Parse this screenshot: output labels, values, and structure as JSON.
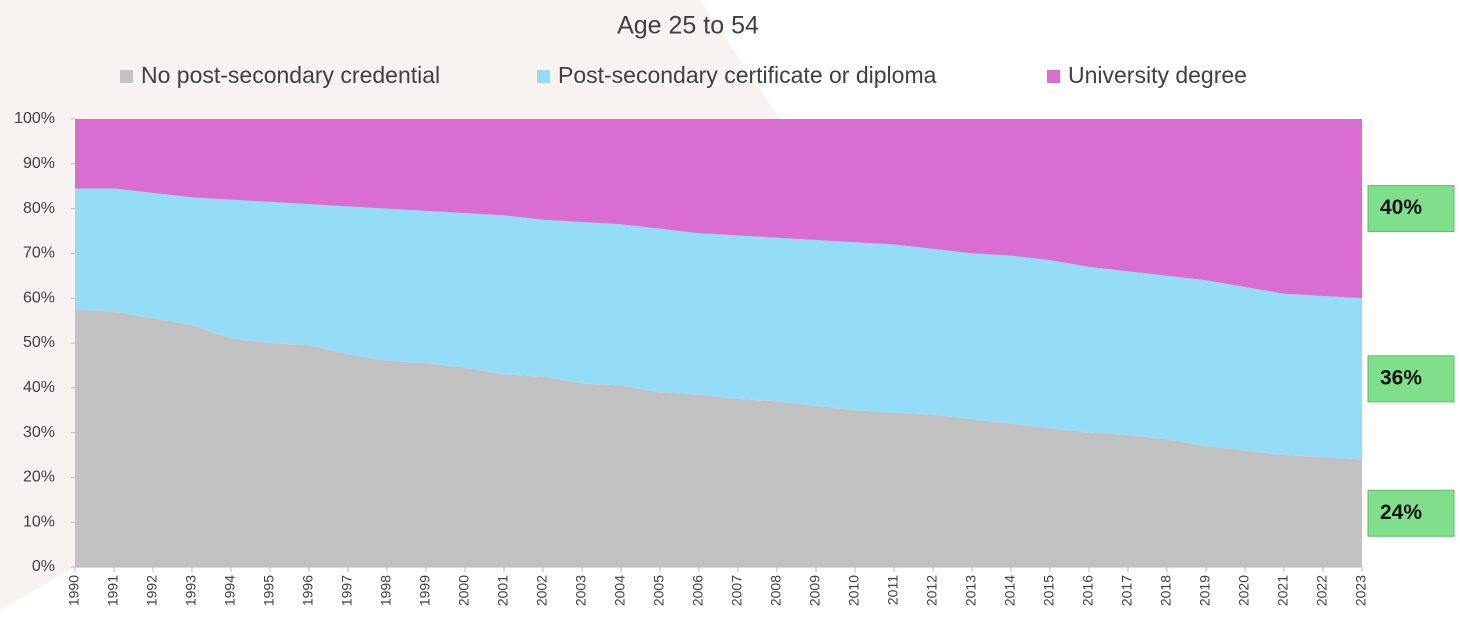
{
  "chart_data": {
    "type": "stacked_area_100",
    "title": "Age 25 to 54",
    "x": [
      1990,
      1991,
      1992,
      1993,
      1994,
      1995,
      1996,
      1997,
      1998,
      1999,
      2000,
      2001,
      2002,
      2003,
      2004,
      2005,
      2006,
      2007,
      2008,
      2009,
      2010,
      2011,
      2012,
      2013,
      2014,
      2015,
      2016,
      2017,
      2018,
      2019,
      2020,
      2021,
      2022,
      2023
    ],
    "xlim": [
      1990,
      2023
    ],
    "xticks": [
      1990,
      1991,
      1992,
      1993,
      1994,
      1995,
      1996,
      1997,
      1998,
      1999,
      2000,
      2001,
      2002,
      2003,
      2004,
      2005,
      2006,
      2007,
      2008,
      2009,
      2010,
      2011,
      2012,
      2013,
      2014,
      2015,
      2016,
      2017,
      2018,
      2019,
      2020,
      2021,
      2022,
      2023
    ],
    "ylim": [
      0,
      100
    ],
    "yticks": [
      {
        "value": 0,
        "label": "0%"
      },
      {
        "value": 10,
        "label": "10%"
      },
      {
        "value": 20,
        "label": "20%"
      },
      {
        "value": 30,
        "label": "30%"
      },
      {
        "value": 40,
        "label": "40%"
      },
      {
        "value": 50,
        "label": "50%"
      },
      {
        "value": 60,
        "label": "60%"
      },
      {
        "value": 70,
        "label": "70%"
      },
      {
        "value": 80,
        "label": "80%"
      },
      {
        "value": 90,
        "label": "90%"
      },
      {
        "value": 100,
        "label": "100%"
      }
    ],
    "legend": "top",
    "series": [
      {
        "name": "No post-secondary credential",
        "color": "#c2c2c2",
        "values": [
          57.5,
          57,
          55.5,
          54,
          51,
          50,
          49.5,
          47.5,
          46,
          45.5,
          44.5,
          43,
          42.5,
          41,
          40.5,
          39,
          38.5,
          37.5,
          37,
          36,
          35,
          34.5,
          34,
          33,
          32,
          31,
          30,
          29.5,
          28.5,
          27,
          26,
          25,
          24.5,
          24
        ],
        "value_labels": [
          null,
          null,
          null,
          null,
          null,
          null,
          null,
          null,
          null,
          null,
          null,
          null,
          null,
          null,
          null,
          null,
          null,
          null,
          null,
          null,
          null,
          null,
          null,
          null,
          null,
          null,
          null,
          null,
          null,
          null,
          null,
          null,
          null,
          "24%"
        ]
      },
      {
        "name": "Post-secondary certificate or diploma",
        "color": "#94dcf7",
        "values": [
          27,
          27.5,
          28,
          28.5,
          31,
          31.5,
          31.5,
          33,
          34,
          34,
          34.5,
          35.5,
          35,
          36,
          36,
          36.5,
          36,
          36.5,
          36.5,
          37,
          37.5,
          37.5,
          37,
          37,
          37.5,
          37.5,
          37,
          36.5,
          36.5,
          37,
          36.5,
          36,
          36,
          36
        ],
        "value_labels": [
          null,
          null,
          null,
          null,
          null,
          null,
          null,
          null,
          null,
          null,
          null,
          null,
          null,
          null,
          null,
          null,
          null,
          null,
          null,
          null,
          null,
          null,
          null,
          null,
          null,
          null,
          null,
          null,
          null,
          null,
          null,
          null,
          null,
          "36%"
        ]
      },
      {
        "name": "University degree",
        "color": "#d96dd1",
        "values": [
          15.5,
          15.5,
          16.5,
          17.5,
          18,
          18.5,
          19,
          19.5,
          20,
          20.5,
          21,
          21.5,
          22.5,
          23,
          23.5,
          24.5,
          25.5,
          26,
          26.5,
          27,
          27.5,
          28,
          29,
          30,
          30.5,
          31.5,
          33,
          34,
          35,
          36,
          37.5,
          39,
          39.5,
          40
        ],
        "value_labels": [
          null,
          null,
          null,
          null,
          null,
          null,
          null,
          null,
          null,
          null,
          null,
          null,
          null,
          null,
          null,
          null,
          null,
          null,
          null,
          null,
          null,
          null,
          null,
          null,
          null,
          null,
          null,
          null,
          null,
          null,
          null,
          null,
          null,
          "40%"
        ]
      }
    ]
  }
}
